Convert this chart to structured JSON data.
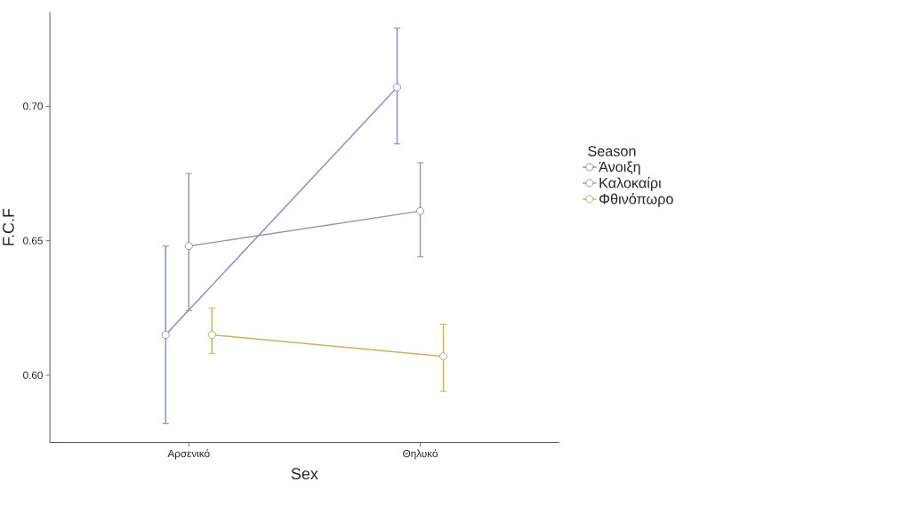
{
  "chart_data": {
    "type": "line",
    "xlabel": "Sex",
    "ylabel": "F.C.F",
    "legend_title": "Season",
    "categories": [
      "Αρσενικό",
      "Θηλυκό"
    ],
    "series": [
      {
        "name": "Άνοιξη",
        "color": "#8090c8",
        "values": [
          0.615,
          0.707
        ],
        "errors": [
          [
            0.582,
            0.648
          ],
          [
            0.686,
            0.729
          ]
        ]
      },
      {
        "name": "Καλοκαίρι",
        "color": "#999999",
        "values": [
          0.648,
          0.661
        ],
        "errors": [
          [
            0.624,
            0.675
          ],
          [
            0.644,
            0.679
          ]
        ]
      },
      {
        "name": "Φθινόπωρο",
        "color": "#c8b45a",
        "values": [
          0.615,
          0.607
        ],
        "errors": [
          [
            0.608,
            0.625
          ],
          [
            0.594,
            0.619
          ]
        ]
      }
    ],
    "ylim": [
      0.575,
      0.735
    ],
    "yticks": [
      {
        "value": 0.6,
        "label": "0.60"
      },
      {
        "value": 0.65,
        "label": "0.65"
      },
      {
        "value": 0.7,
        "label": "0.70"
      }
    ],
    "grid": false,
    "legend": "right",
    "marker": "circle",
    "line_style": "solid"
  }
}
